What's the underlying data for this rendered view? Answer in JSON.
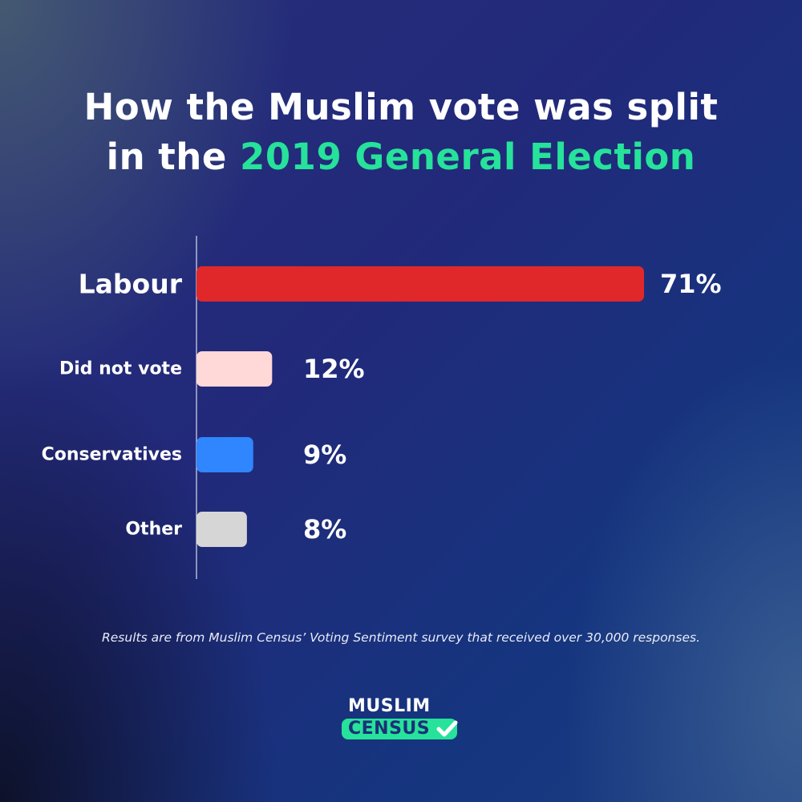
{
  "title": {
    "line1": "How the Muslim vote was split",
    "line2_prefix": "in the ",
    "line2_highlight": "2019 General Election"
  },
  "chart_data": {
    "type": "bar",
    "orientation": "horizontal",
    "categories": [
      "Labour",
      "Did not vote",
      "Conservatives",
      "Other"
    ],
    "values": [
      71,
      12,
      9,
      8
    ],
    "value_labels": [
      "71%",
      "12%",
      "9%",
      "8%"
    ],
    "colors": [
      "#e0282b",
      "#ffd8d8",
      "#2f86ff",
      "#d6d6d6"
    ],
    "title": "How the Muslim vote was split in the 2019 General Election",
    "xlabel": "",
    "ylabel": "",
    "xlim": [
      0,
      71
    ],
    "grid": false,
    "legend": "none"
  },
  "footnote": "Results are from Muslim Census’ Voting Sentiment survey that received over 30,000 responses.",
  "logo": {
    "line1": "MUSLIM",
    "line2": "CENSUS",
    "accent_color": "#26e29a"
  },
  "colors": {
    "accent": "#26e29a",
    "text": "#ffffff"
  }
}
